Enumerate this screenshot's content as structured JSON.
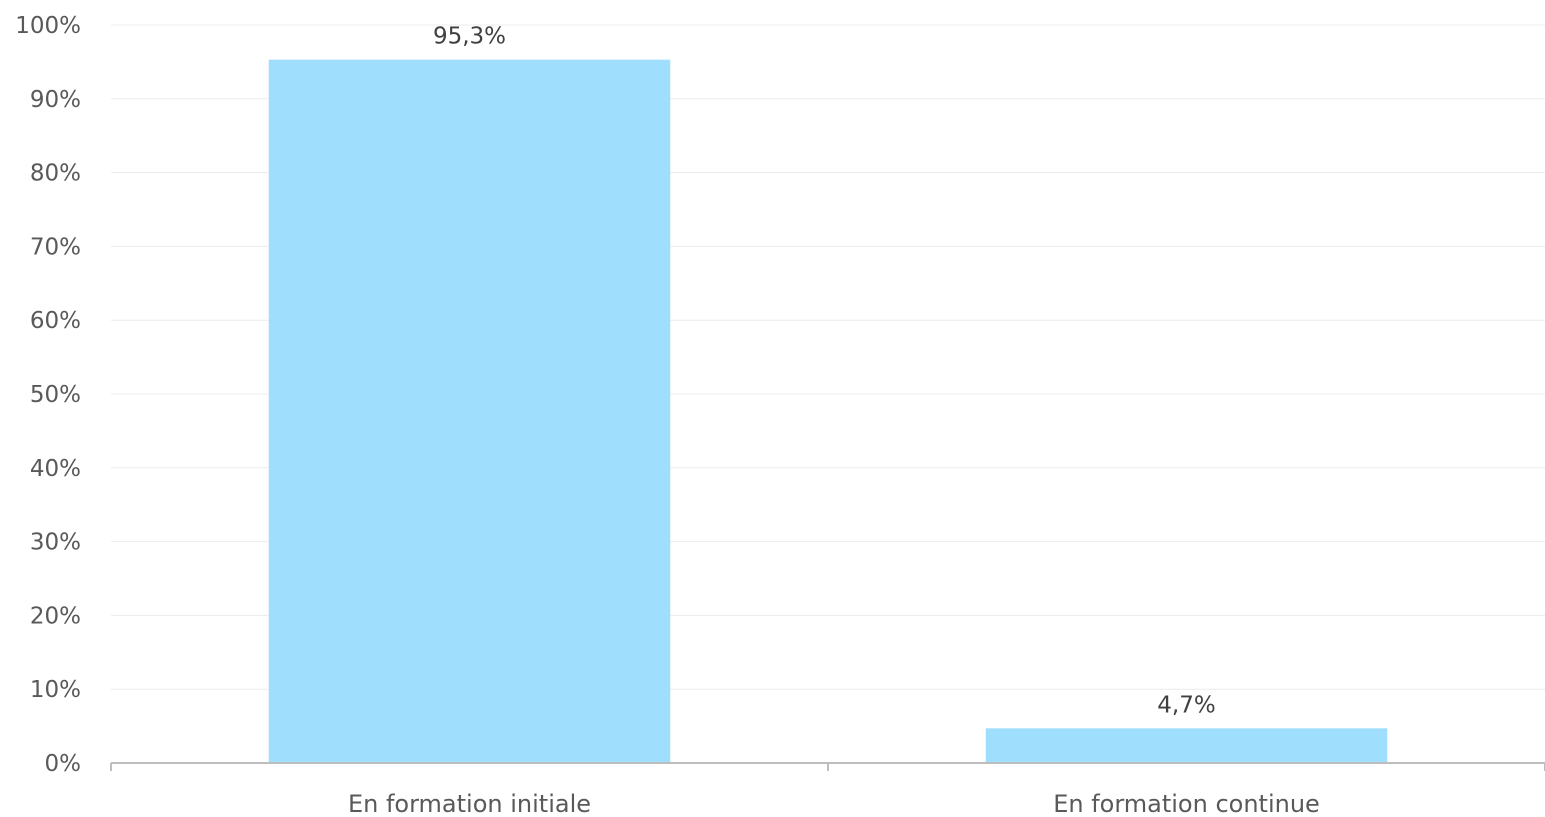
{
  "chart_data": {
    "type": "bar",
    "categories": [
      "En formation initiale",
      "En formation continue"
    ],
    "values": [
      95.3,
      4.7
    ],
    "data_labels": [
      "95,3%",
      "4,7%"
    ],
    "title": "",
    "xlabel": "",
    "ylabel": "",
    "ylim": [
      0,
      100
    ],
    "yticks": [
      0,
      10,
      20,
      30,
      40,
      50,
      60,
      70,
      80,
      90,
      100
    ],
    "ytick_labels": [
      "0%",
      "10%",
      "20%",
      "30%",
      "40%",
      "50%",
      "60%",
      "70%",
      "80%",
      "90%",
      "100%"
    ],
    "grid": true,
    "legend": "none",
    "colors": {
      "bar": "#9fdefc",
      "grid": "#ececec",
      "axis": "#bdbdbd",
      "text": "#595959"
    }
  }
}
